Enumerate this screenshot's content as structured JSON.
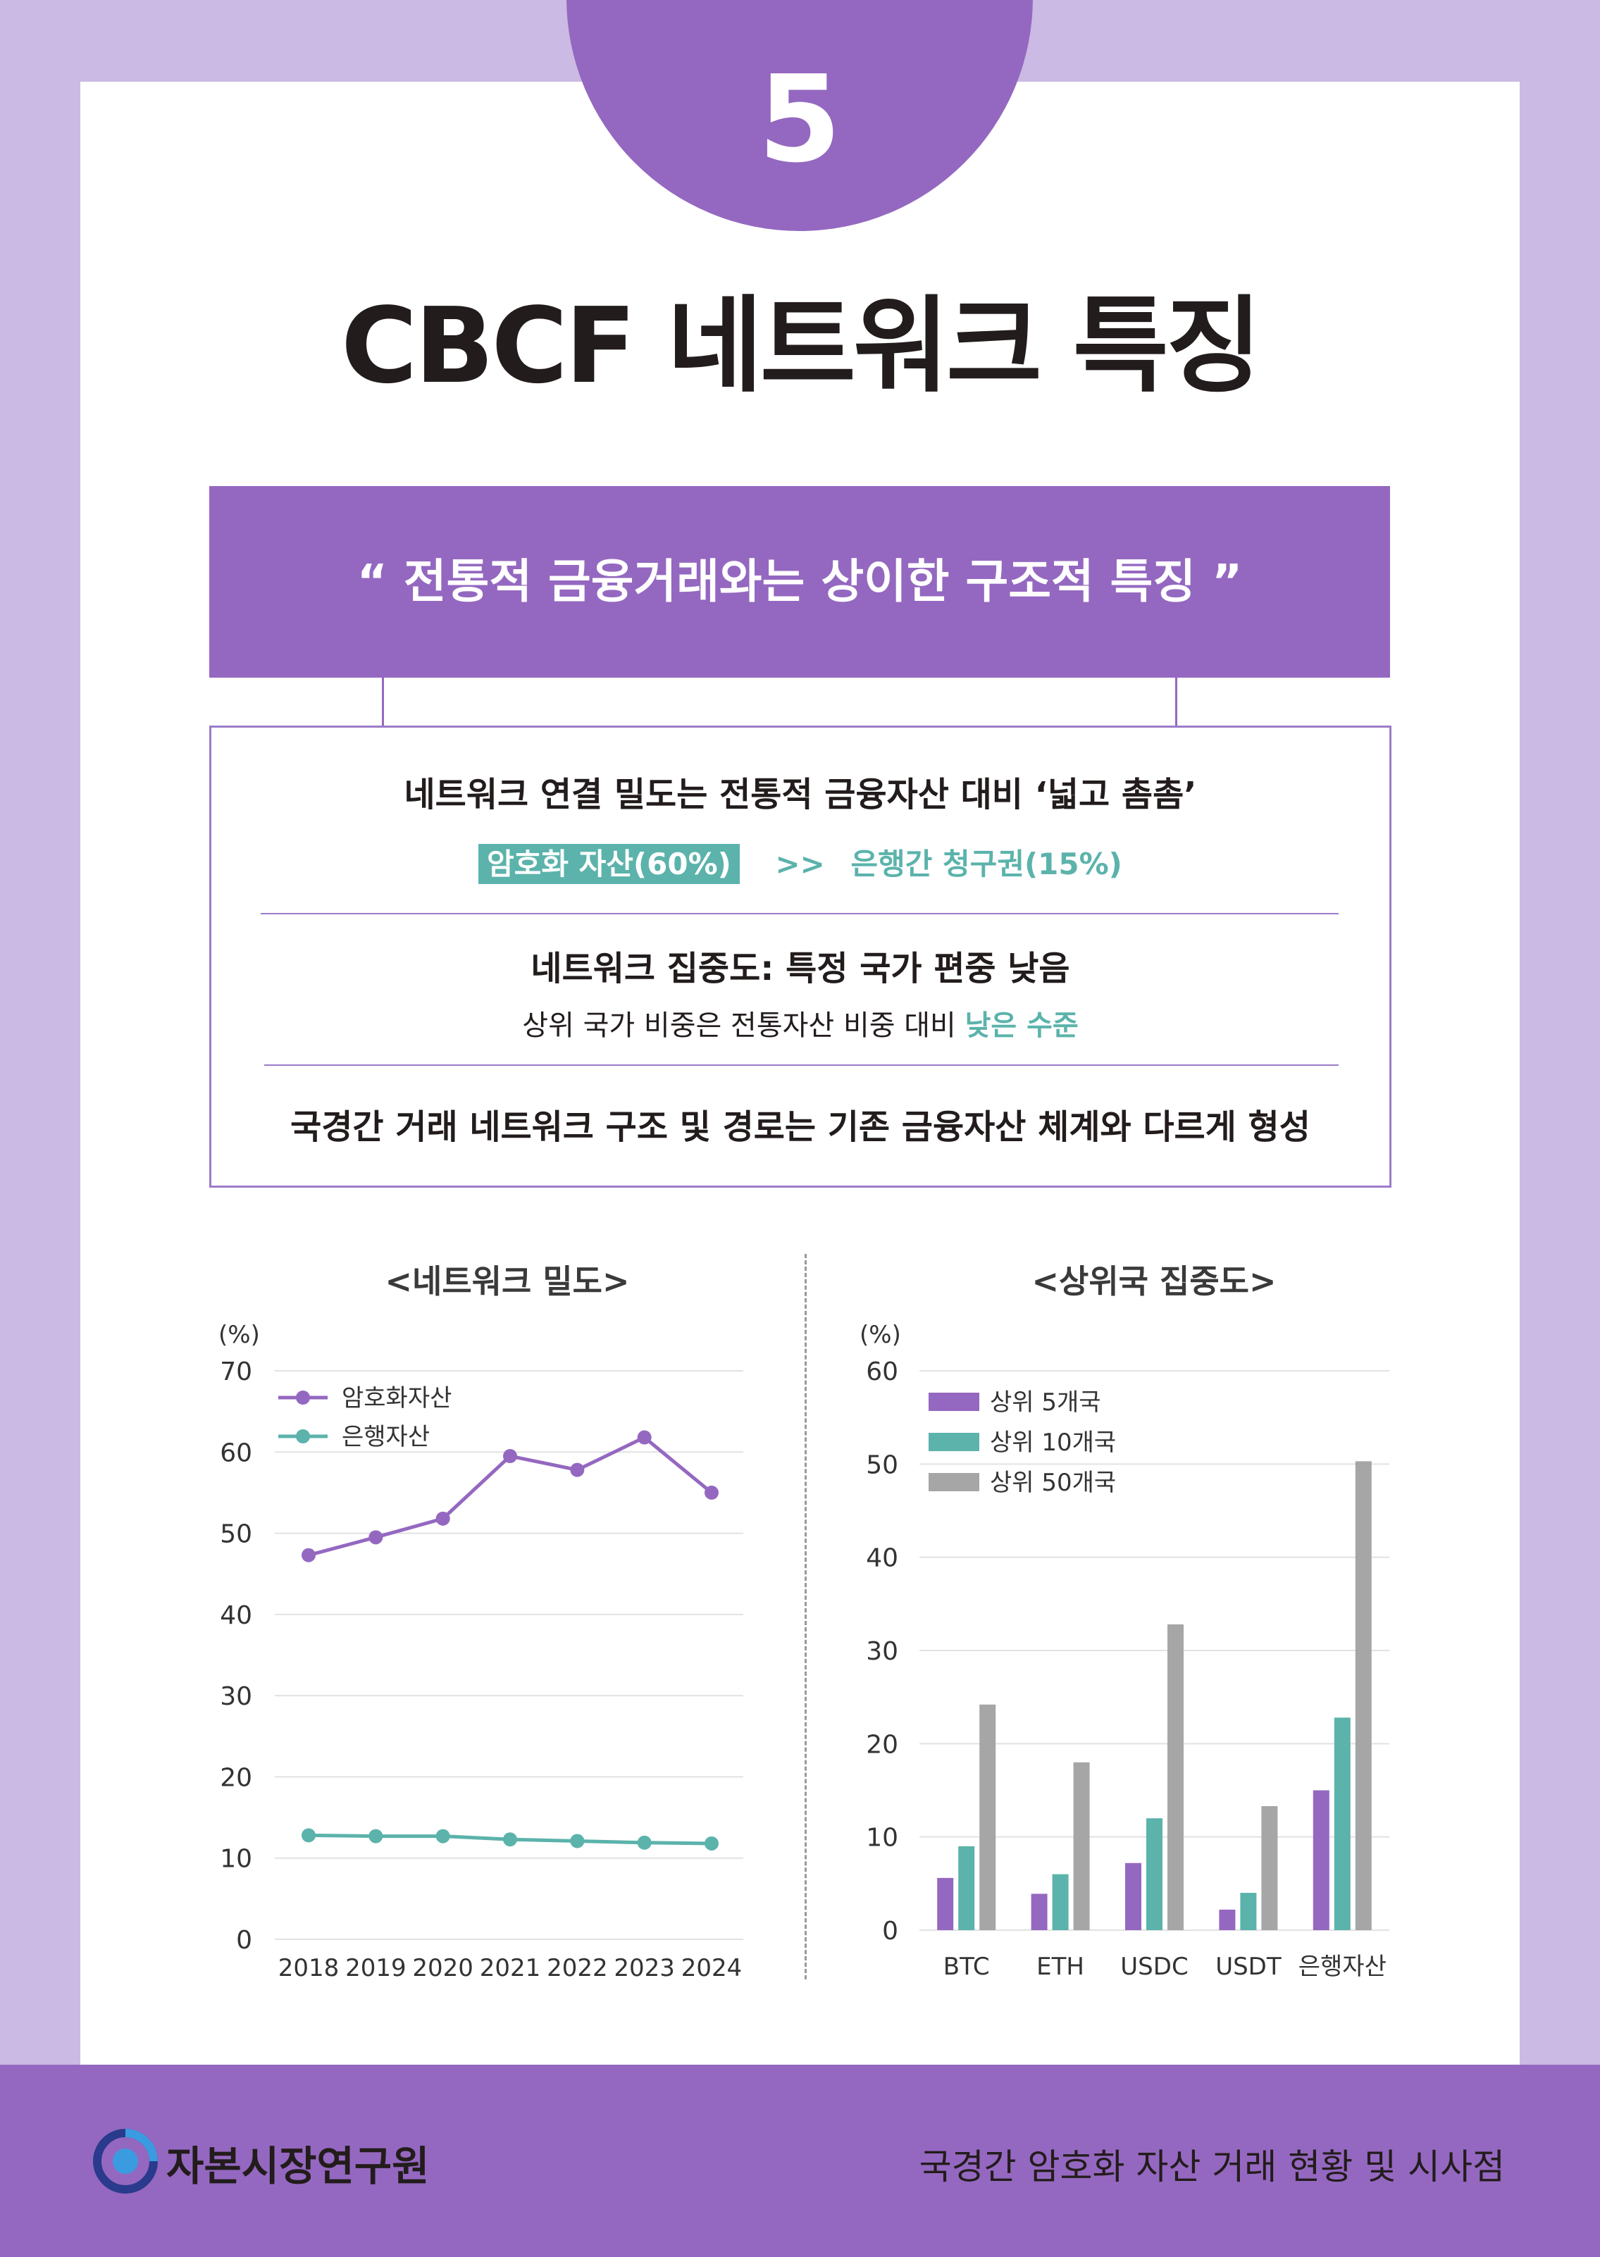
{
  "page": {
    "number": "5",
    "title": "CBCF 네트워크 특징"
  },
  "banner": "“ 전통적 금융거래와는 상이한 구조적 특징 ”",
  "points": {
    "p1_title": "네트워크 연결 밀도는 전통적 금융자산 대비 ‘넓고 촘촘’",
    "p1_badge": "암호화 자산(60%)",
    "p1_arrow": ">>",
    "p1_compare": "은행간 청구권(15%)",
    "p2_title": "네트워크 집중도: 특정 국가 편중 낮음",
    "p2_sub": "상위 국가 비중은 전통자산 비중 대비 ",
    "p2_highlight": "낮은 수준",
    "p3_title": "국경간 거래 네트워크 구조 및 경로는 기존 금융자산 체계와 다르게 형성"
  },
  "colors": {
    "purple": "#9468c0",
    "teal": "#5bb3ab",
    "gray": "#a6a6a6"
  },
  "chart_data": [
    {
      "type": "line",
      "title": "<네트워크 밀도>",
      "ylabel": "(%)",
      "ylim": [
        0,
        70
      ],
      "yticks": [
        "0",
        "10",
        "20",
        "30",
        "40",
        "50",
        "60",
        "70"
      ],
      "x": [
        "2018",
        "2019",
        "2020",
        "2021",
        "2022",
        "2023",
        "2024"
      ],
      "series": [
        {
          "name": "암호화자산",
          "color": "#9468c0",
          "values": [
            47.3,
            49.5,
            51.8,
            59.5,
            57.8,
            61.8,
            55.0
          ]
        },
        {
          "name": "은행자산",
          "color": "#5bb3ab",
          "values": [
            12.8,
            12.7,
            12.7,
            12.3,
            12.1,
            11.9,
            11.8
          ]
        }
      ],
      "legend": "top-left",
      "grid": true
    },
    {
      "type": "bar",
      "title": "<상위국 집중도>",
      "ylabel": "(%)",
      "ylim": [
        0,
        60
      ],
      "yticks": [
        "0",
        "10",
        "20",
        "30",
        "40",
        "50",
        "60"
      ],
      "categories": [
        "BTC",
        "ETH",
        "USDC",
        "USDT",
        "은행자산"
      ],
      "series": [
        {
          "name": "상위 5개국",
          "color": "#9468c0",
          "values": [
            5.6,
            3.9,
            7.2,
            2.2,
            15.0
          ]
        },
        {
          "name": "상위 10개국",
          "color": "#5bb3ab",
          "values": [
            9.0,
            6.0,
            12.0,
            4.0,
            22.8
          ]
        },
        {
          "name": "상위 50개국",
          "color": "#a6a6a6",
          "values": [
            24.2,
            18.0,
            32.8,
            13.3,
            50.3
          ]
        }
      ],
      "legend": "top-left",
      "grid": true
    }
  ],
  "footer": {
    "org": "자본시장연구원",
    "report": "국경간 암호화 자산 거래 현황 및 시사점"
  }
}
